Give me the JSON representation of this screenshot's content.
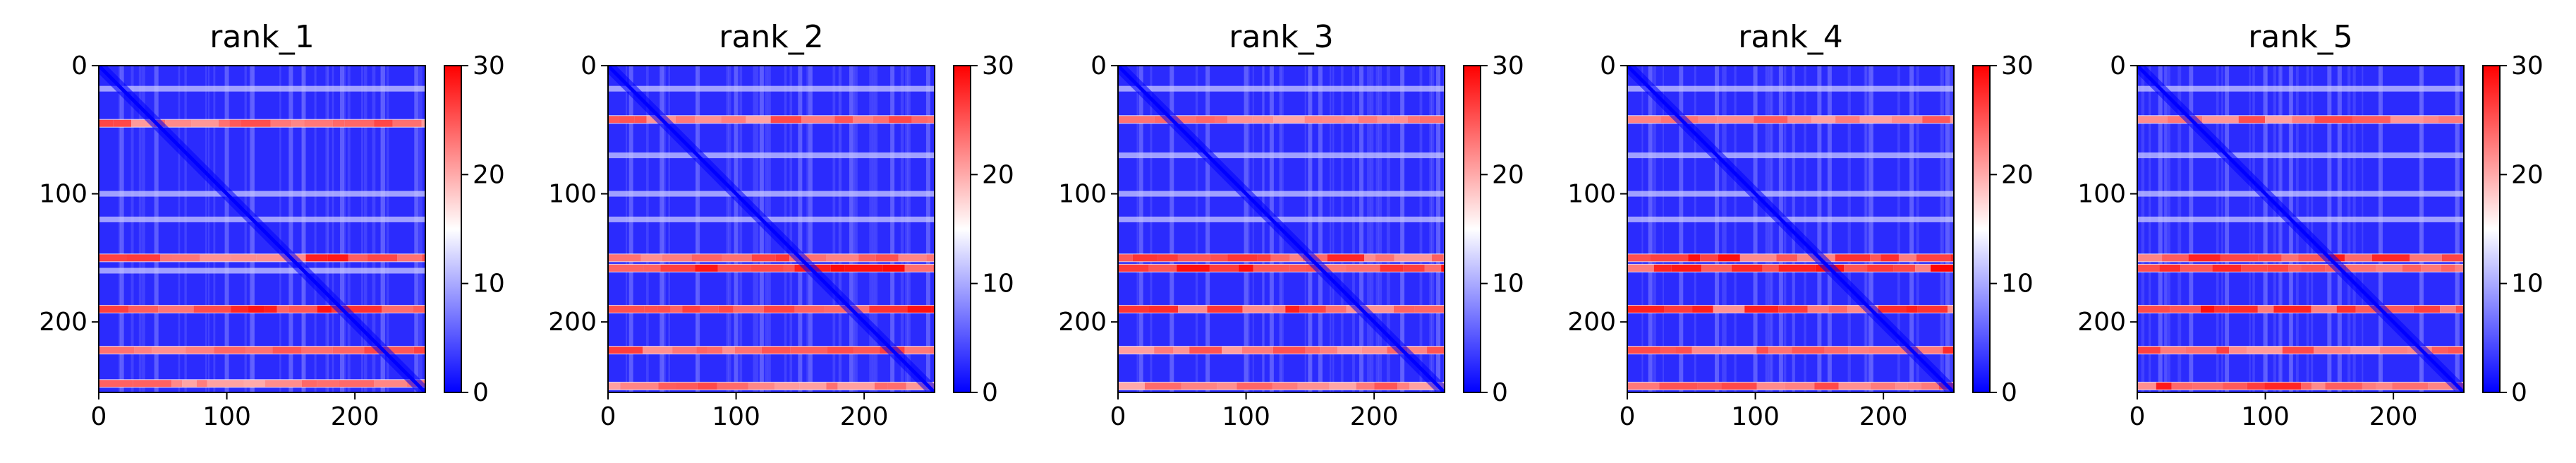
{
  "chart_data": {
    "type": "heatmap",
    "colormap": "bwr",
    "panels": [
      {
        "title": "rank_1",
        "x_ticks": [
          "0",
          "100",
          "200"
        ],
        "y_ticks": [
          "0",
          "100",
          "200"
        ],
        "xlim": [
          0,
          255
        ],
        "ylim": [
          255,
          0
        ],
        "colorbar_ticks": [
          "0",
          "10",
          "20",
          "30"
        ],
        "color_range": [
          0,
          30
        ],
        "red_band_rows": [
          45,
          150,
          190,
          222,
          248
        ],
        "light_band_rows": [
          18,
          100,
          160,
          120
        ],
        "red_band_strength": [
          0.7,
          0.9,
          0.95,
          0.8,
          0.6
        ]
      },
      {
        "title": "rank_2",
        "x_ticks": [
          "0",
          "100",
          "200"
        ],
        "y_ticks": [
          "0",
          "100",
          "200"
        ],
        "xlim": [
          0,
          255
        ],
        "ylim": [
          255,
          0
        ],
        "colorbar_ticks": [
          "0",
          "10",
          "20",
          "30"
        ],
        "color_range": [
          0,
          30
        ],
        "red_band_rows": [
          42,
          150,
          158,
          190,
          222,
          250
        ],
        "light_band_rows": [
          18,
          100,
          120,
          70
        ],
        "red_band_strength": [
          0.7,
          0.8,
          1.0,
          0.95,
          0.75,
          0.7
        ]
      },
      {
        "title": "rank_3",
        "x_ticks": [
          "0",
          "100",
          "200"
        ],
        "y_ticks": [
          "0",
          "100",
          "200"
        ],
        "xlim": [
          0,
          255
        ],
        "ylim": [
          255,
          0
        ],
        "colorbar_ticks": [
          "0",
          "10",
          "20",
          "30"
        ],
        "color_range": [
          0,
          30
        ],
        "red_band_rows": [
          42,
          150,
          158,
          190,
          222,
          250
        ],
        "light_band_rows": [
          18,
          100,
          120,
          70
        ],
        "red_band_strength": [
          0.65,
          0.85,
          0.95,
          0.9,
          0.7,
          0.65
        ]
      },
      {
        "title": "rank_4",
        "x_ticks": [
          "0",
          "100",
          "200"
        ],
        "y_ticks": [
          "0",
          "100",
          "200"
        ],
        "xlim": [
          0,
          255
        ],
        "ylim": [
          255,
          0
        ],
        "colorbar_ticks": [
          "0",
          "10",
          "20",
          "30"
        ],
        "color_range": [
          0,
          30
        ],
        "red_band_rows": [
          42,
          150,
          158,
          190,
          222,
          250
        ],
        "light_band_rows": [
          18,
          70,
          100,
          120
        ],
        "red_band_strength": [
          0.65,
          0.95,
          1.0,
          0.9,
          0.85,
          0.7
        ]
      },
      {
        "title": "rank_5",
        "x_ticks": [
          "0",
          "100",
          "200"
        ],
        "y_ticks": [
          "0",
          "100",
          "200"
        ],
        "xlim": [
          0,
          255
        ],
        "ylim": [
          255,
          0
        ],
        "colorbar_ticks": [
          "0",
          "10",
          "20",
          "30"
        ],
        "color_range": [
          0,
          30
        ],
        "red_band_rows": [
          42,
          150,
          158,
          190,
          222,
          250
        ],
        "light_band_rows": [
          18,
          70,
          100,
          120
        ],
        "red_band_strength": [
          0.7,
          0.9,
          0.95,
          0.95,
          0.75,
          0.9
        ]
      }
    ]
  }
}
